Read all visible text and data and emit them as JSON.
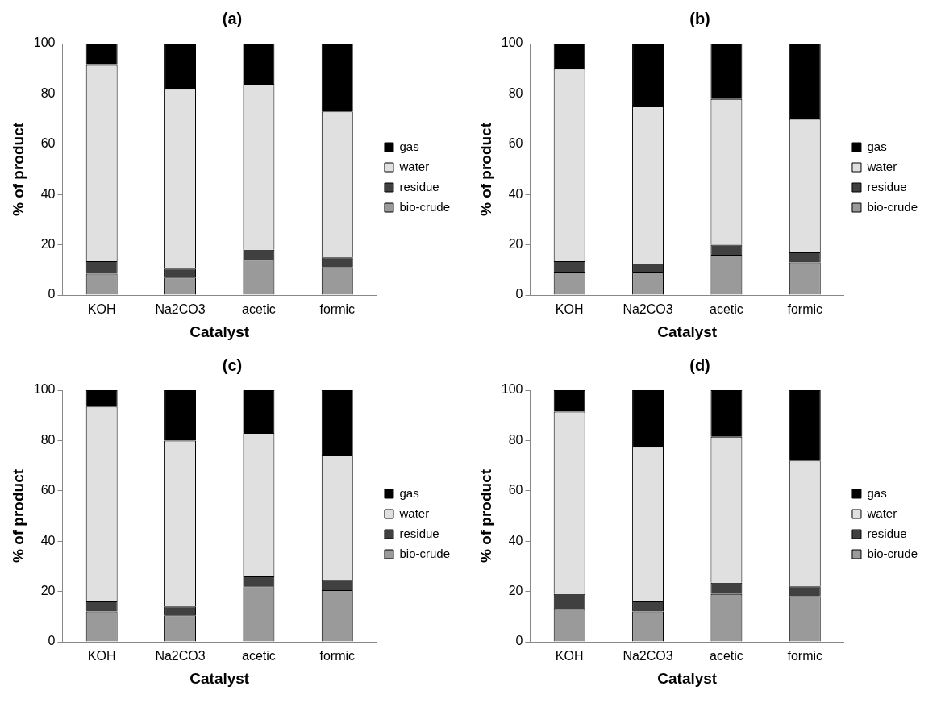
{
  "chart_data": [
    {
      "type": "bar",
      "title": "(a)",
      "xlabel": "Catalyst",
      "ylabel": "% of product",
      "categories": [
        "KOH",
        "Na2CO3",
        "acetic",
        "formic"
      ],
      "stacked": true,
      "ylim": [
        0,
        100
      ],
      "yticks": [
        0,
        20,
        40,
        60,
        80,
        100
      ],
      "grid": false,
      "legend": "right",
      "series": [
        {
          "name": "bio-crude",
          "color": "#9a9a9a",
          "values": [
            8.5,
            7,
            14,
            11
          ]
        },
        {
          "name": "residue",
          "color": "#404040",
          "values": [
            5,
            3.5,
            4,
            4
          ]
        },
        {
          "name": "water",
          "color": "#e0e0e0",
          "values": [
            78,
            71.5,
            66,
            58
          ]
        },
        {
          "name": "gas",
          "color": "#000000",
          "values": [
            8.5,
            18,
            16,
            27
          ]
        }
      ]
    },
    {
      "type": "bar",
      "title": "(b)",
      "xlabel": "Catalyst",
      "ylabel": "% of product",
      "categories": [
        "KOH",
        "Na2CO3",
        "acetic",
        "formic"
      ],
      "stacked": true,
      "ylim": [
        0,
        100
      ],
      "yticks": [
        0,
        20,
        40,
        60,
        80,
        100
      ],
      "grid": false,
      "legend": "right",
      "series": [
        {
          "name": "bio-crude",
          "color": "#9a9a9a",
          "values": [
            9,
            9,
            16,
            13
          ]
        },
        {
          "name": "residue",
          "color": "#404040",
          "values": [
            4.5,
            3.5,
            4,
            4
          ]
        },
        {
          "name": "water",
          "color": "#e0e0e0",
          "values": [
            76.5,
            62.5,
            58,
            53
          ]
        },
        {
          "name": "gas",
          "color": "#000000",
          "values": [
            10,
            25,
            22,
            30
          ]
        }
      ]
    },
    {
      "type": "bar",
      "title": "(c)",
      "xlabel": "Catalyst",
      "ylabel": "% of product",
      "categories": [
        "KOH",
        "Na2CO3",
        "acetic",
        "formic"
      ],
      "stacked": true,
      "ylim": [
        0,
        100
      ],
      "yticks": [
        0,
        20,
        40,
        60,
        80,
        100
      ],
      "grid": false,
      "legend": "right",
      "series": [
        {
          "name": "bio-crude",
          "color": "#9a9a9a",
          "values": [
            12,
            10.5,
            22,
            20.5
          ]
        },
        {
          "name": "residue",
          "color": "#404040",
          "values": [
            4,
            3.5,
            4,
            4
          ]
        },
        {
          "name": "water",
          "color": "#e0e0e0",
          "values": [
            77.5,
            66,
            57,
            49.5
          ]
        },
        {
          "name": "gas",
          "color": "#000000",
          "values": [
            6.5,
            20,
            17,
            26
          ]
        }
      ]
    },
    {
      "type": "bar",
      "title": "(d)",
      "xlabel": "Catalyst",
      "ylabel": "% of product",
      "categories": [
        "KOH",
        "Na2CO3",
        "acetic",
        "formic"
      ],
      "stacked": true,
      "ylim": [
        0,
        100
      ],
      "yticks": [
        0,
        20,
        40,
        60,
        80,
        100
      ],
      "grid": false,
      "legend": "right",
      "series": [
        {
          "name": "bio-crude",
          "color": "#9a9a9a",
          "values": [
            13,
            12,
            19,
            18
          ]
        },
        {
          "name": "residue",
          "color": "#404040",
          "values": [
            6,
            4,
            4.5,
            4
          ]
        },
        {
          "name": "water",
          "color": "#e0e0e0",
          "values": [
            72.5,
            61.5,
            58,
            50
          ]
        },
        {
          "name": "gas",
          "color": "#000000",
          "values": [
            8.5,
            22.5,
            18.5,
            28
          ]
        }
      ]
    }
  ]
}
